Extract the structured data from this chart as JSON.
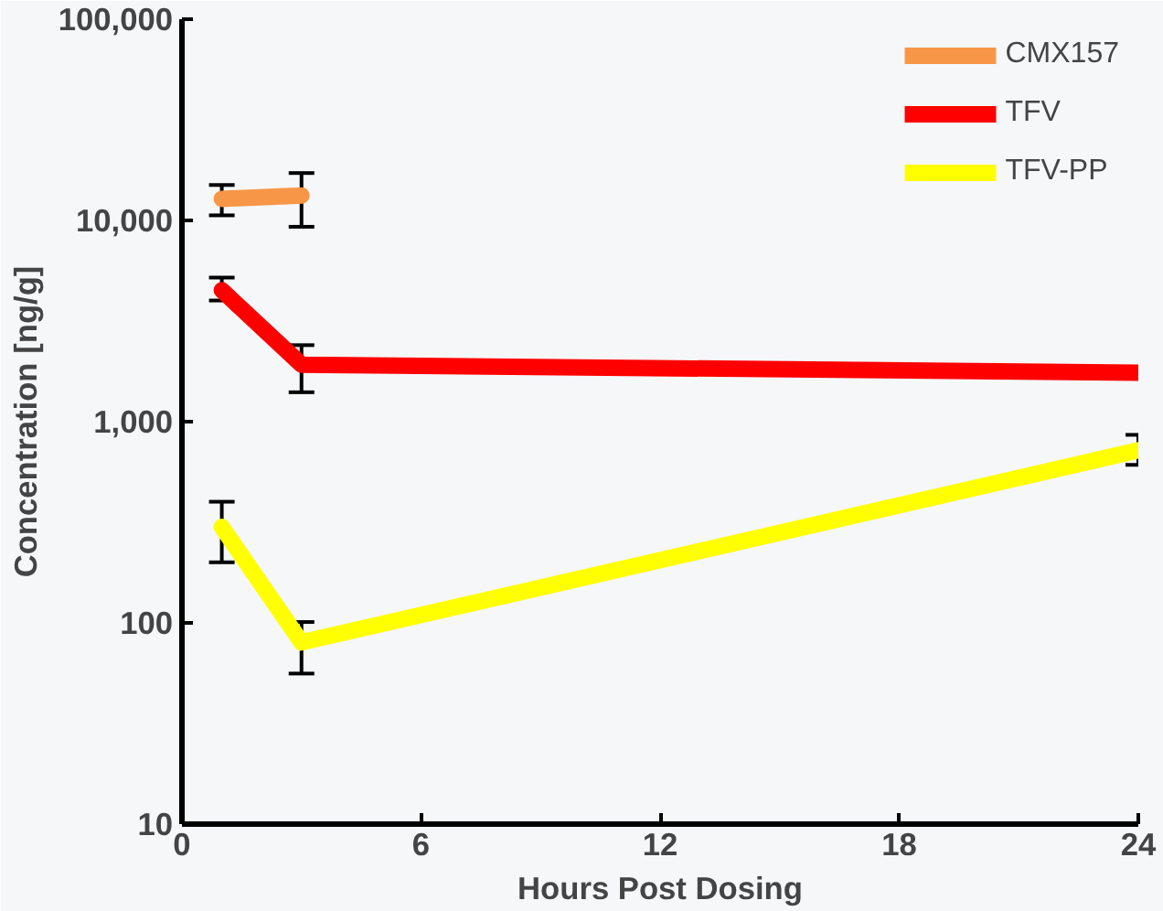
{
  "chart_data": {
    "type": "line",
    "xlabel": "Hours Post Dosing",
    "ylabel": "Concentration [ng/g]",
    "log": true,
    "grid": false,
    "legend": "top right",
    "marker": "none",
    "line_style": "solid",
    "xlim": [
      0,
      24
    ],
    "xticks": [
      0,
      6,
      12,
      18,
      24
    ],
    "ylim": [
      10,
      100000
    ],
    "yticks": [
      {
        "value": 10,
        "label": "10"
      },
      {
        "value": 100,
        "label": "100"
      },
      {
        "value": 1000,
        "label": "1,000"
      },
      {
        "value": 10000,
        "label": "10,000"
      },
      {
        "value": 100000,
        "label": "100,000"
      }
    ],
    "series": [
      {
        "name": "CMX157",
        "color": "#f79646",
        "x": [
          1,
          3
        ],
        "values": [
          12800,
          13300
        ],
        "errors": [
          [
            10600,
            15000
          ],
          [
            9300,
            17200
          ]
        ]
      },
      {
        "name": "TFV",
        "color": "#ff0000",
        "x": [
          1,
          3,
          24
        ],
        "values": [
          4500,
          1920,
          1750
        ],
        "errors": [
          [
            4000,
            5200
          ],
          [
            1400,
            2400
          ],
          null
        ]
      },
      {
        "name": "TFV-PP",
        "color": "#ffff00",
        "x": [
          1,
          3,
          24
        ],
        "values": [
          300,
          80,
          720
        ],
        "errors": [
          [
            200,
            400
          ],
          [
            56,
            101
          ],
          [
            610,
            860
          ]
        ]
      }
    ]
  }
}
